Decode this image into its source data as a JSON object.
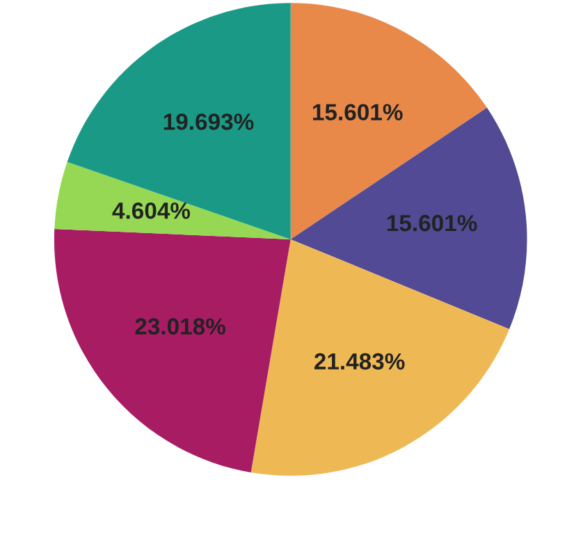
{
  "chart_data": {
    "type": "pie",
    "categories": [
      null,
      null,
      null,
      null,
      null,
      null
    ],
    "values": [
      15.601,
      15.601,
      21.483,
      23.018,
      4.604,
      19.693
    ],
    "value_labels": [
      "15.601%",
      "15.601%",
      "21.483%",
      "23.018%",
      "4.604%",
      "19.693%"
    ],
    "colors": [
      "#e8894a",
      "#524a94",
      "#eeb955",
      "#a81c64",
      "#96d854",
      "#1a9a86"
    ]
  }
}
